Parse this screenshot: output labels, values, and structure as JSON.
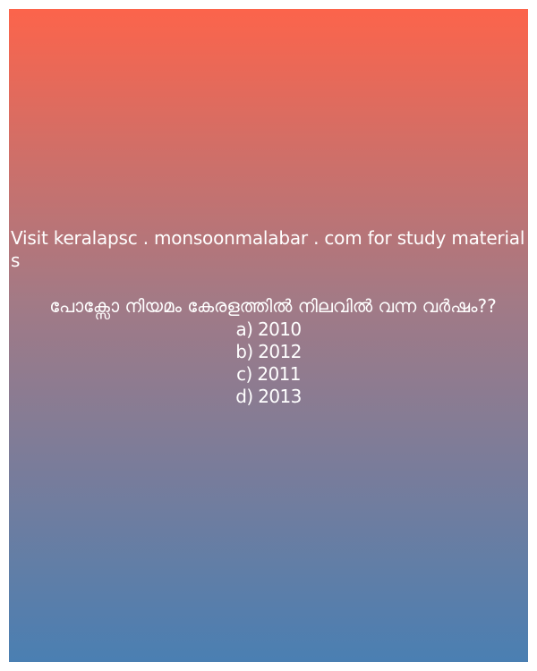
{
  "promo_text": "Visit keralapsc . monsoonmalabar . com for study materials",
  "question": "പോക്സോ നിയമം കേരളത്തിൽ നിലവിൽ വന്ന വർഷം??",
  "options": [
    "a) 2010",
    "b) 2012",
    "c) 2011",
    "d) 2013"
  ],
  "colors": {
    "gradient_top": "#fc644b",
    "gradient_bottom": "#4a7fb2",
    "text": "#ffffff"
  }
}
